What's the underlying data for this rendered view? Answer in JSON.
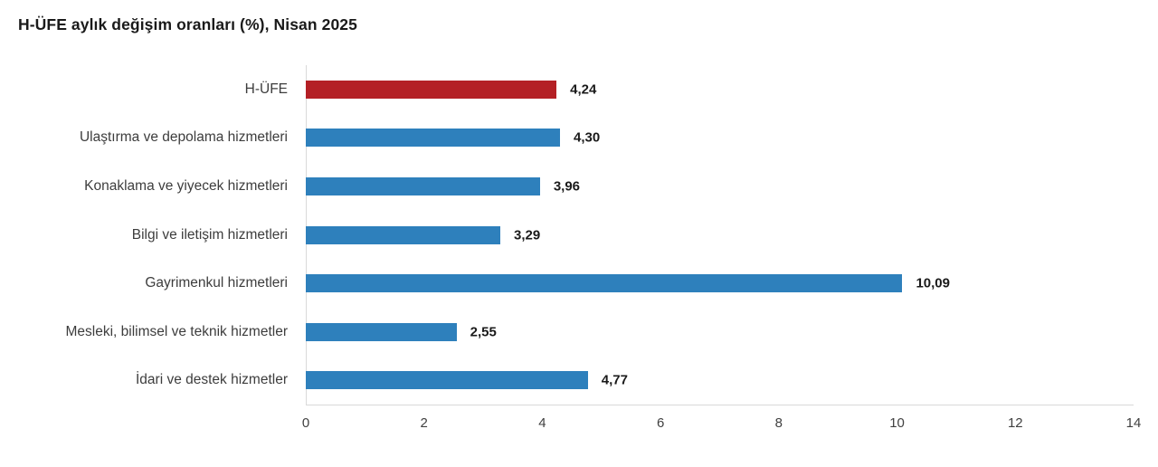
{
  "title": "H-ÜFE aylık değişim oranları (%), Nisan 2025",
  "colors": {
    "highlight_bar": "#b42025",
    "default_bar": "#2e80bc",
    "axis_line": "#d9d9d9",
    "category_label": "#3d3d3d",
    "value_label": "#1a1a1a",
    "title_text": "#1a1a1a",
    "background": "#ffffff"
  },
  "chart_data": {
    "type": "bar",
    "orientation": "horizontal",
    "title": "H-ÜFE aylık değişim oranları (%), Nisan 2025",
    "categories": [
      "H-ÜFE",
      "Ulaştırma ve depolama hizmetleri",
      "Konaklama ve yiyecek hizmetleri",
      "Bilgi ve iletişim hizmetleri",
      "Gayrimenkul hizmetleri",
      "Mesleki, bilimsel ve teknik hizmetler",
      "İdari ve destek hizmetler"
    ],
    "values": [
      4.24,
      4.3,
      3.96,
      3.29,
      10.09,
      2.55,
      4.77
    ],
    "value_labels": [
      "4,24",
      "4,30",
      "3,96",
      "3,29",
      "10,09",
      "2,55",
      "4,77"
    ],
    "bar_colors": [
      "#b42025",
      "#2e80bc",
      "#2e80bc",
      "#2e80bc",
      "#2e80bc",
      "#2e80bc",
      "#2e80bc"
    ],
    "xlabel": "",
    "ylabel": "",
    "xlim": [
      0,
      14
    ],
    "x_ticks": [
      0,
      2,
      4,
      6,
      8,
      10,
      12,
      14
    ],
    "x_tick_labels": [
      "0",
      "2",
      "4",
      "6",
      "8",
      "10",
      "12",
      "14"
    ],
    "grid": false,
    "legend": false
  }
}
